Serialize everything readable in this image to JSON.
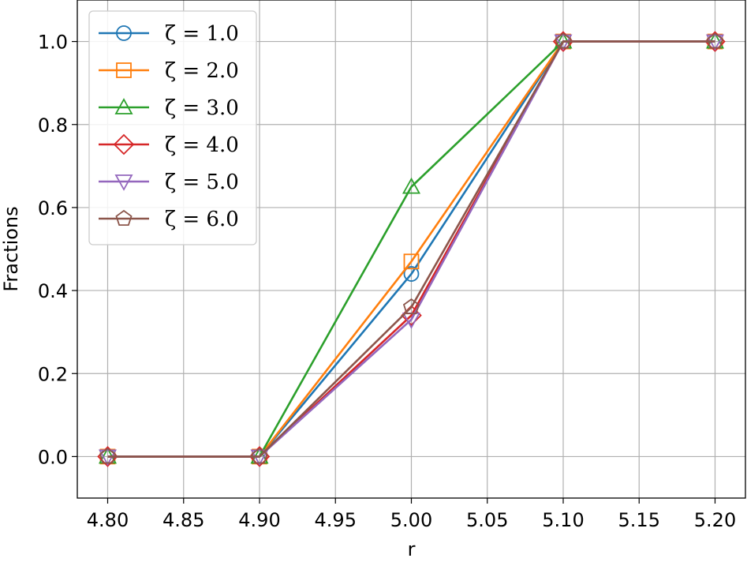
{
  "chart_data": {
    "type": "line",
    "xlabel": "r",
    "ylabel": "Fractions",
    "xlim": [
      4.78,
      5.22
    ],
    "ylim": [
      -0.1,
      1.1
    ],
    "grid": true,
    "legend_position": "upper-left",
    "x": [
      4.8,
      4.9,
      5.0,
      5.1,
      5.2
    ],
    "xticks": [
      "4.80",
      "4.85",
      "4.90",
      "4.95",
      "5.00",
      "5.05",
      "5.10",
      "5.15",
      "5.20"
    ],
    "yticks": [
      "0.0",
      "0.2",
      "0.4",
      "0.6",
      "0.8",
      "1.0"
    ],
    "series": [
      {
        "name": "ζ = 1.0",
        "color": "#1f77b4",
        "marker": "circle",
        "values": [
          0.0,
          0.0,
          0.44,
          1.0,
          1.0
        ]
      },
      {
        "name": "ζ = 2.0",
        "color": "#ff7f0e",
        "marker": "square",
        "values": [
          0.0,
          0.0,
          0.47,
          1.0,
          1.0
        ]
      },
      {
        "name": "ζ = 3.0",
        "color": "#2ca02c",
        "marker": "triangle-up",
        "values": [
          0.0,
          0.0,
          0.65,
          1.0,
          1.0
        ]
      },
      {
        "name": "ζ = 4.0",
        "color": "#d62728",
        "marker": "diamond",
        "values": [
          0.0,
          0.0,
          0.34,
          1.0,
          1.0
        ]
      },
      {
        "name": "ζ = 5.0",
        "color": "#9467bd",
        "marker": "triangle-down",
        "values": [
          0.0,
          0.0,
          0.33,
          1.0,
          1.0
        ]
      },
      {
        "name": "ζ = 6.0",
        "color": "#8c564b",
        "marker": "pentagon",
        "values": [
          0.0,
          0.0,
          0.36,
          1.0,
          1.0
        ]
      }
    ]
  }
}
